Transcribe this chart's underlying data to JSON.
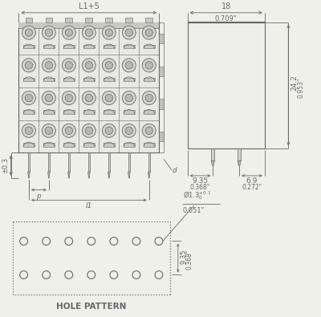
{
  "bg_color": "#f0f0eb",
  "line_color": "#666666",
  "body_fill": "#e8e8e4",
  "dim_top_label": "L1+5",
  "dim_top_label2": "18",
  "dim_top_label2b": "0.709\"",
  "dim_right_label": "24.2",
  "dim_right_label2": "0.953\"",
  "dim_bottom_left": "9.35",
  "dim_bottom_left2": "0.368\"",
  "dim_bottom_right": "6.9",
  "dim_bottom_right2": "0.272\"",
  "dim_left_label": "±0.3",
  "hole_label": "Ø1.3",
  "hole_label2": "0.051\"",
  "hole_pattern_label": "HOLE PATTERN",
  "dim_p": "p",
  "dim_l1": "l1",
  "dim_d": "d",
  "hole_dim": "9.35",
  "hole_dim2": "0.368\""
}
